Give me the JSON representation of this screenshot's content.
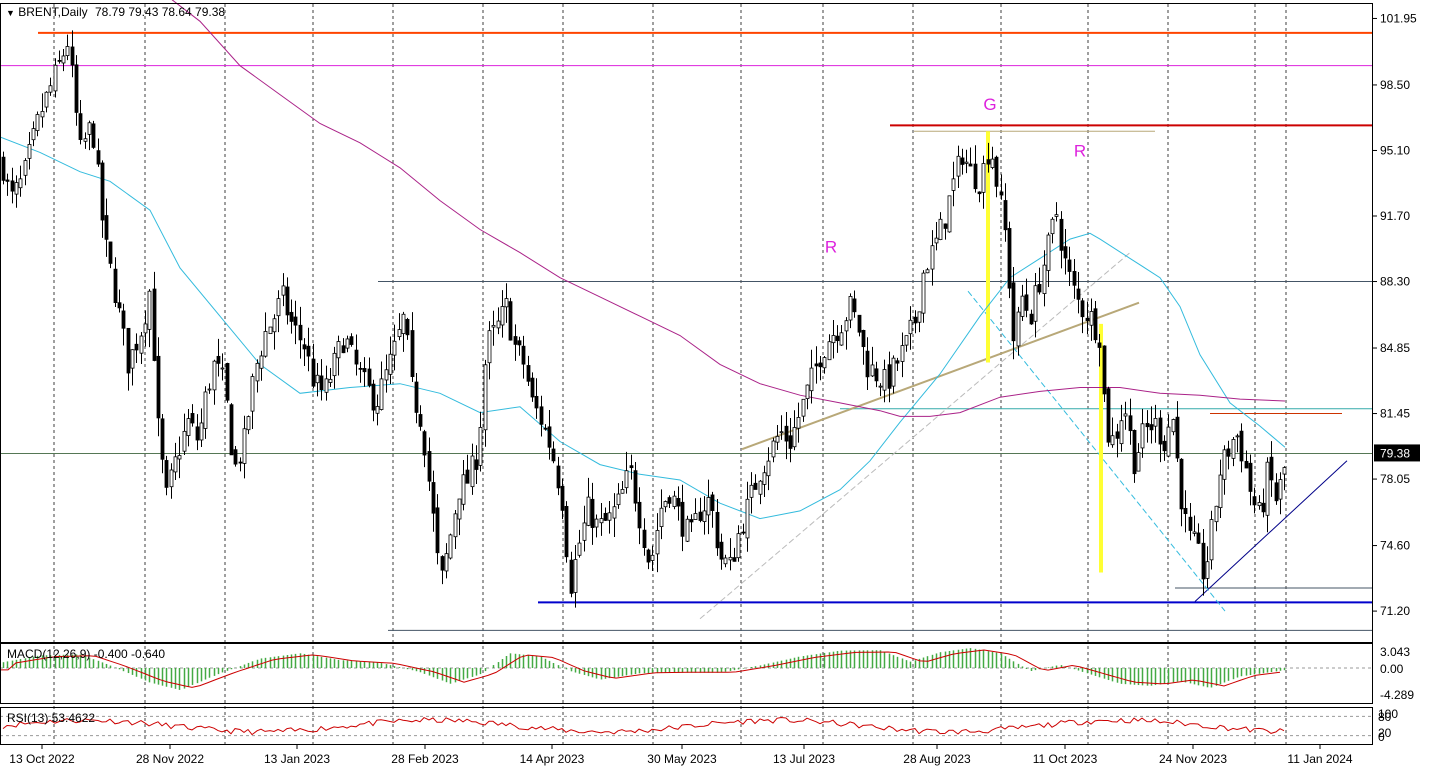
{
  "header": {
    "symbol": "BRENT,Daily",
    "ohlc": "78.79 79.43 78.64 79.38"
  },
  "colors": {
    "bull_candle": "#000000",
    "bear_candle": "#000000",
    "ma_short": "#33bbdd",
    "ma_long": "#aa2288",
    "resistance_top": "#ff4400",
    "magenta_line": "#dd22dd",
    "red_line": "#cc0000",
    "blue_support": "#0000cc",
    "trendline": "#b8a878",
    "yellow_bar": "#ffff33",
    "macd_hist": "#44aa44",
    "macd_signal": "#cc0000",
    "rsi_line": "#cc0000"
  },
  "chart_data": {
    "type": "candlestick",
    "title": "BRENT,Daily",
    "y_ticks": [
      "101.95",
      "98.50",
      "95.10",
      "91.70",
      "88.30",
      "84.85",
      "81.45",
      "78.05",
      "74.60",
      "71.20"
    ],
    "ylim": [
      69.7,
      102.7
    ],
    "x_ticks": [
      "13 Oct 2022",
      "28 Nov 2022",
      "13 Jan 2023",
      "28 Feb 2023",
      "14 Apr 2023",
      "30 May 2023",
      "13 Jul 2023",
      "28 Aug 2023",
      "11 Oct 2023",
      "24 Nov 2023",
      "11 Jan 2024"
    ],
    "last_price": "79.38",
    "close_path": [
      [
        0,
        95.0
      ],
      [
        10,
        92.5
      ],
      [
        22,
        93.5
      ],
      [
        40,
        97.0
      ],
      [
        55,
        99.0
      ],
      [
        68,
        100.8
      ],
      [
        80,
        95.0
      ],
      [
        92,
        96.5
      ],
      [
        104,
        90.5
      ],
      [
        116,
        87.5
      ],
      [
        128,
        84.0
      ],
      [
        142,
        86.0
      ],
      [
        150,
        88.0
      ],
      [
        158,
        80.5
      ],
      [
        166,
        77.0
      ],
      [
        178,
        79.5
      ],
      [
        188,
        81.0
      ],
      [
        198,
        80.0
      ],
      [
        206,
        82.5
      ],
      [
        214,
        84.0
      ],
      [
        224,
        83.0
      ],
      [
        234,
        78.5
      ],
      [
        244,
        80.0
      ],
      [
        254,
        83.5
      ],
      [
        264,
        85.5
      ],
      [
        274,
        86.5
      ],
      [
        282,
        87.5
      ],
      [
        292,
        86.0
      ],
      [
        304,
        85.0
      ],
      [
        314,
        83.0
      ],
      [
        324,
        82.5
      ],
      [
        334,
        84.0
      ],
      [
        344,
        85.5
      ],
      [
        354,
        84.0
      ],
      [
        364,
        83.0
      ],
      [
        376,
        82.0
      ],
      [
        386,
        83.5
      ],
      [
        396,
        85.0
      ],
      [
        404,
        86.5
      ],
      [
        412,
        82.5
      ],
      [
        422,
        81.0
      ],
      [
        432,
        76.5
      ],
      [
        440,
        72.5
      ],
      [
        448,
        74.5
      ],
      [
        458,
        77.5
      ],
      [
        468,
        78.0
      ],
      [
        478,
        79.5
      ],
      [
        486,
        85.0
      ],
      [
        496,
        85.8
      ],
      [
        506,
        87.0
      ],
      [
        514,
        85.0
      ],
      [
        524,
        84.0
      ],
      [
        532,
        82.0
      ],
      [
        542,
        81.0
      ],
      [
        552,
        79.5
      ],
      [
        562,
        77.0
      ],
      [
        570,
        72.5
      ],
      [
        578,
        74.5
      ],
      [
        588,
        76.5
      ],
      [
        598,
        75.5
      ],
      [
        610,
        76.0
      ],
      [
        620,
        77.0
      ],
      [
        630,
        78.5
      ],
      [
        640,
        76.0
      ],
      [
        650,
        73.5
      ],
      [
        660,
        76.5
      ],
      [
        670,
        77.5
      ],
      [
        680,
        76.0
      ],
      [
        690,
        75.0
      ],
      [
        700,
        76.5
      ],
      [
        710,
        77.0
      ],
      [
        720,
        74.0
      ],
      [
        730,
        73.5
      ],
      [
        740,
        75.5
      ],
      [
        750,
        77.0
      ],
      [
        760,
        78.5
      ],
      [
        770,
        79.5
      ],
      [
        780,
        80.5
      ],
      [
        790,
        80.0
      ],
      [
        800,
        81.5
      ],
      [
        810,
        83.0
      ],
      [
        820,
        84.5
      ],
      [
        830,
        85.5
      ],
      [
        840,
        86.0
      ],
      [
        850,
        87.0
      ],
      [
        858,
        86.0
      ],
      [
        866,
        84.0
      ],
      [
        876,
        83.5
      ],
      [
        886,
        83.0
      ],
      [
        896,
        84.0
      ],
      [
        906,
        85.0
      ],
      [
        916,
        86.5
      ],
      [
        924,
        89.0
      ],
      [
        934,
        90.0
      ],
      [
        944,
        91.5
      ],
      [
        954,
        93.5
      ],
      [
        962,
        95.0
      ],
      [
        970,
        94.0
      ],
      [
        980,
        93.5
      ],
      [
        990,
        95.5
      ],
      [
        998,
        93.0
      ],
      [
        1006,
        90.5
      ],
      [
        1014,
        85.0
      ],
      [
        1022,
        87.5
      ],
      [
        1030,
        86.5
      ],
      [
        1040,
        88.5
      ],
      [
        1050,
        90.5
      ],
      [
        1056,
        92.0
      ],
      [
        1064,
        89.5
      ],
      [
        1072,
        88.0
      ],
      [
        1080,
        87.0
      ],
      [
        1090,
        86.5
      ],
      [
        1100,
        85.5
      ],
      [
        1106,
        80.5
      ],
      [
        1114,
        80.0
      ],
      [
        1124,
        82.0
      ],
      [
        1134,
        79.0
      ],
      [
        1144,
        80.5
      ],
      [
        1154,
        81.0
      ],
      [
        1164,
        80.0
      ],
      [
        1172,
        81.5
      ],
      [
        1180,
        77.5
      ],
      [
        1188,
        75.0
      ],
      [
        1196,
        74.5
      ],
      [
        1204,
        73.0
      ],
      [
        1212,
        75.5
      ],
      [
        1220,
        78.5
      ],
      [
        1228,
        79.5
      ],
      [
        1236,
        80.5
      ],
      [
        1244,
        79.0
      ],
      [
        1252,
        77.0
      ],
      [
        1260,
        76.0
      ],
      [
        1268,
        78.5
      ],
      [
        1276,
        77.0
      ],
      [
        1282,
        78.0
      ],
      [
        1288,
        79.38
      ]
    ],
    "ma_short_path": [
      [
        0,
        95.8
      ],
      [
        40,
        95.0
      ],
      [
        80,
        94.0
      ],
      [
        110,
        93.5
      ],
      [
        150,
        92.0
      ],
      [
        180,
        89.0
      ],
      [
        220,
        86.5
      ],
      [
        260,
        84.0
      ],
      [
        300,
        82.5
      ],
      [
        350,
        82.8
      ],
      [
        400,
        83.0
      ],
      [
        440,
        82.5
      ],
      [
        480,
        81.5
      ],
      [
        520,
        81.8
      ],
      [
        560,
        80.0
      ],
      [
        600,
        78.8
      ],
      [
        640,
        78.3
      ],
      [
        680,
        78.0
      ],
      [
        720,
        76.8
      ],
      [
        760,
        76.0
      ],
      [
        800,
        76.4
      ],
      [
        840,
        77.5
      ],
      [
        870,
        79.0
      ],
      [
        900,
        81.0
      ],
      [
        940,
        83.5
      ],
      [
        980,
        86.5
      ],
      [
        1010,
        88.5
      ],
      [
        1040,
        89.5
      ],
      [
        1070,
        90.5
      ],
      [
        1090,
        90.8
      ],
      [
        1100,
        90.5
      ],
      [
        1130,
        89.5
      ],
      [
        1160,
        88.5
      ],
      [
        1180,
        87.0
      ],
      [
        1200,
        84.5
      ],
      [
        1230,
        82.0
      ],
      [
        1260,
        80.8
      ],
      [
        1285,
        79.7
      ]
    ],
    "ma_long_path": [
      [
        170,
        103.0
      ],
      [
        200,
        101.8
      ],
      [
        240,
        99.5
      ],
      [
        280,
        98.0
      ],
      [
        320,
        96.5
      ],
      [
        360,
        95.5
      ],
      [
        400,
        94.2
      ],
      [
        440,
        92.5
      ],
      [
        480,
        91.0
      ],
      [
        520,
        89.8
      ],
      [
        560,
        88.5
      ],
      [
        600,
        87.5
      ],
      [
        640,
        86.5
      ],
      [
        680,
        85.5
      ],
      [
        720,
        84.0
      ],
      [
        760,
        83.0
      ],
      [
        800,
        82.4
      ],
      [
        840,
        82.0
      ],
      [
        880,
        81.6
      ],
      [
        900,
        81.3
      ],
      [
        930,
        81.3
      ],
      [
        960,
        81.5
      ],
      [
        1000,
        82.3
      ],
      [
        1040,
        82.6
      ],
      [
        1080,
        82.8
      ],
      [
        1120,
        82.8
      ],
      [
        1160,
        82.5
      ],
      [
        1200,
        82.4
      ],
      [
        1240,
        82.2
      ],
      [
        1285,
        82.1
      ]
    ],
    "horizontal_levels": [
      {
        "price": 101.2,
        "x0": 38,
        "x1": 1372,
        "color": "#ff4400"
      },
      {
        "price": 99.5,
        "x0": 0,
        "x1": 1372,
        "color": "#dd22dd"
      },
      {
        "price": 96.4,
        "x0": 890,
        "x1": 1372,
        "color": "#cc0000"
      },
      {
        "price": 96.1,
        "x0": 914,
        "x1": 1155,
        "color": "#b8a878"
      },
      {
        "price": 88.3,
        "x0": 378,
        "x1": 1372,
        "color": "#445566"
      },
      {
        "price": 81.7,
        "x0": 840,
        "x1": 1372,
        "color": "#33aaaa"
      },
      {
        "price": 79.38,
        "x0": 0,
        "x1": 1372,
        "color": "#557755"
      },
      {
        "price": 81.45,
        "x0": 1210,
        "x1": 1342,
        "color": "#cc3300"
      },
      {
        "price": 72.4,
        "x0": 1175,
        "x1": 1372,
        "color": "#445566"
      },
      {
        "price": 71.65,
        "x0": 538,
        "x1": 1372,
        "color": "#0000cc"
      },
      {
        "price": 70.2,
        "x0": 388,
        "x1": 1372,
        "color": "#445566"
      }
    ],
    "annotations": [
      {
        "text": "R",
        "x": 831,
        "price": 89.8
      },
      {
        "text": "G",
        "x": 990,
        "price": 97.2
      },
      {
        "text": "R",
        "x": 1080,
        "price": 94.8
      }
    ],
    "macd_label": "MACD(12,26,9) -0.400 -0.640",
    "macd_ticks": [
      "3.043",
      "0.00",
      "-4.289"
    ],
    "rsi_label": "RSI(13) 53.4622",
    "rsi_ticks": [
      "100",
      "80",
      "20",
      "0"
    ],
    "grid": true
  }
}
